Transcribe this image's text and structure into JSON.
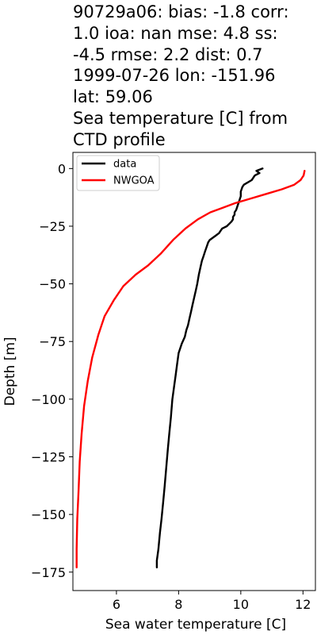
{
  "chart_data": {
    "type": "line",
    "title_lines": [
      "90729a06: bias: -1.8  corr:",
      "1.0  ioa: nan  mse: 4.8  ss:",
      "-4.5  rmse: 2.2  dist: 0.7",
      "1999-07-26 lon: -151.96",
      "lat: 59.06",
      "Sea temperature [C] from",
      "CTD profile"
    ],
    "xlabel": "Sea water temperature [C]",
    "ylabel": "Depth [m]",
    "xlim": [
      4.6,
      12.4
    ],
    "ylim": [
      -183,
      7
    ],
    "xticks": [
      6,
      8,
      10,
      12
    ],
    "yticks": [
      0,
      -25,
      -50,
      -75,
      -100,
      -125,
      -150,
      -175
    ],
    "grid": false,
    "legend_position": "upper-left",
    "series": [
      {
        "name": "data",
        "color": "#000000",
        "x": [
          10.7,
          10.5,
          10.6,
          10.45,
          10.35,
          10.1,
          10.05,
          10.0,
          10.0,
          9.95,
          9.9,
          9.85,
          9.8,
          9.8,
          9.75,
          9.75,
          9.7,
          9.55,
          9.4,
          9.35,
          9.3,
          9.2,
          9.0,
          8.95,
          8.9,
          8.85,
          8.8,
          8.75,
          8.7,
          8.65,
          8.6,
          8.55,
          8.5,
          8.45,
          8.4,
          8.35,
          8.3,
          8.25,
          8.2,
          8.1,
          8.0,
          7.95,
          7.9,
          7.85,
          7.8,
          7.75,
          7.7,
          7.65,
          7.6,
          7.55,
          7.5,
          7.45,
          7.4,
          7.35,
          7.3,
          7.3
        ],
        "y": [
          0,
          -1,
          -2,
          -3,
          -5,
          -7,
          -8,
          -10,
          -12,
          -14,
          -16,
          -18,
          -19,
          -20,
          -21,
          -22,
          -23,
          -25,
          -26,
          -27,
          -28,
          -29,
          -31,
          -32,
          -34,
          -36,
          -38,
          -40,
          -43,
          -46,
          -50,
          -53,
          -56,
          -59,
          -62,
          -65,
          -68,
          -70,
          -73,
          -76,
          -80,
          -85,
          -90,
          -95,
          -100,
          -108,
          -115,
          -122,
          -130,
          -138,
          -145,
          -152,
          -158,
          -165,
          -170,
          -173
        ]
      },
      {
        "name": "NWGOA",
        "color": "#ff0000",
        "x": [
          12.05,
          12.02,
          11.92,
          11.72,
          11.32,
          10.82,
          10.32,
          9.82,
          9.42,
          9.02,
          8.62,
          8.22,
          7.82,
          7.42,
          7.02,
          6.62,
          6.22,
          5.92,
          5.62,
          5.42,
          5.22,
          5.08,
          4.96,
          4.88,
          4.82,
          4.78,
          4.74,
          4.72,
          4.72
        ],
        "y": [
          -1,
          -3,
          -5,
          -7,
          -9,
          -11,
          -13,
          -15,
          -17,
          -19,
          -22,
          -26,
          -31,
          -37,
          -42,
          -46,
          -51,
          -57,
          -64,
          -72,
          -82,
          -92,
          -103,
          -115,
          -127,
          -140,
          -152,
          -165,
          -173
        ]
      }
    ]
  }
}
